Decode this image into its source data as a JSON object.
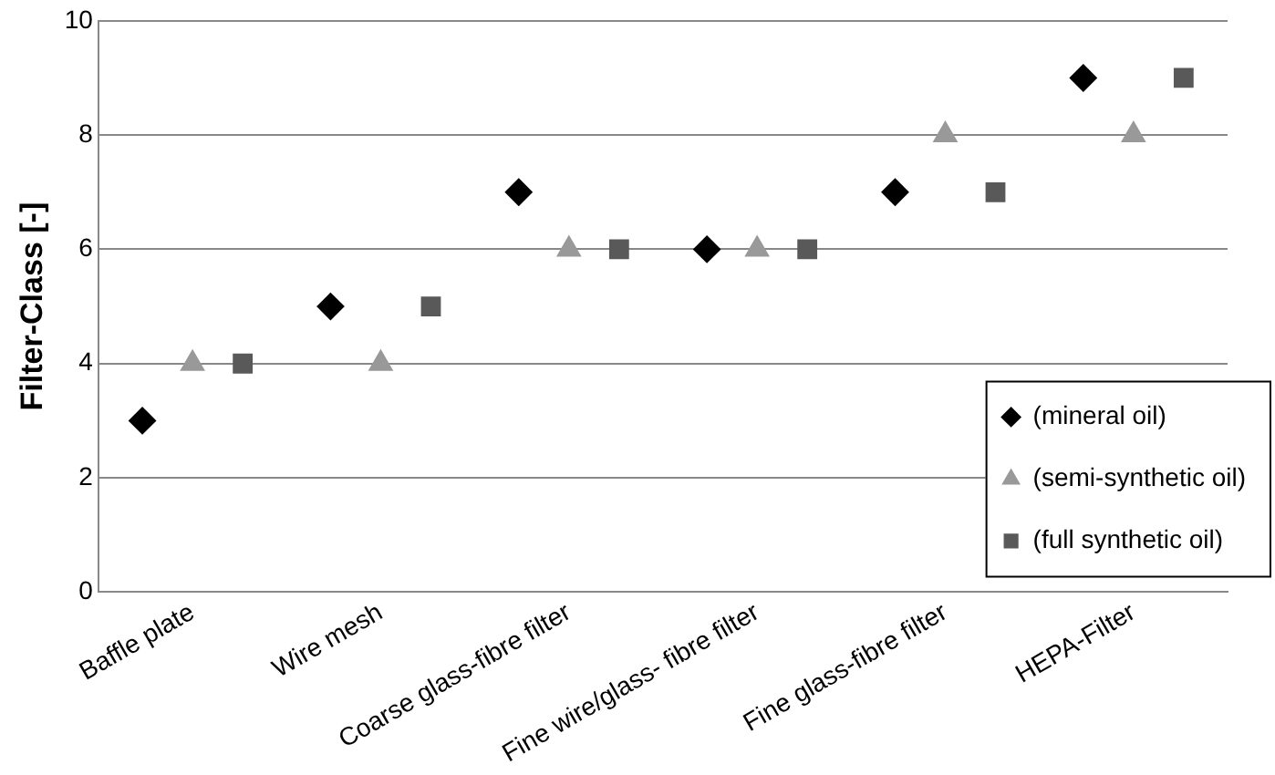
{
  "chart_data": {
    "type": "scatter",
    "ylabel": "Filter-Class [-]",
    "categories": [
      "Baffle plate",
      "Wire mesh",
      "Coarse glass-fibre filter",
      "Fine wire/glass- fibre filter",
      "Fine glass-fibre filter",
      "HEPA-Filter"
    ],
    "series": [
      {
        "name": "(mineral oil)",
        "color": "#000000",
        "marker": "diamond",
        "values": [
          3,
          5,
          7,
          6,
          7,
          9
        ]
      },
      {
        "name": "(semi-synthetic oil)",
        "color": "#999999",
        "marker": "triangle",
        "values": [
          4,
          4,
          6,
          6,
          8,
          8
        ]
      },
      {
        "name": "(full synthetic oil)",
        "color": "#595959",
        "marker": "square",
        "values": [
          4,
          5,
          6,
          6,
          7,
          9
        ]
      }
    ],
    "ylim": [
      0,
      10
    ],
    "yticks": [
      0,
      2,
      4,
      6,
      8,
      10
    ],
    "grid": "y",
    "legend": "bottom right"
  }
}
